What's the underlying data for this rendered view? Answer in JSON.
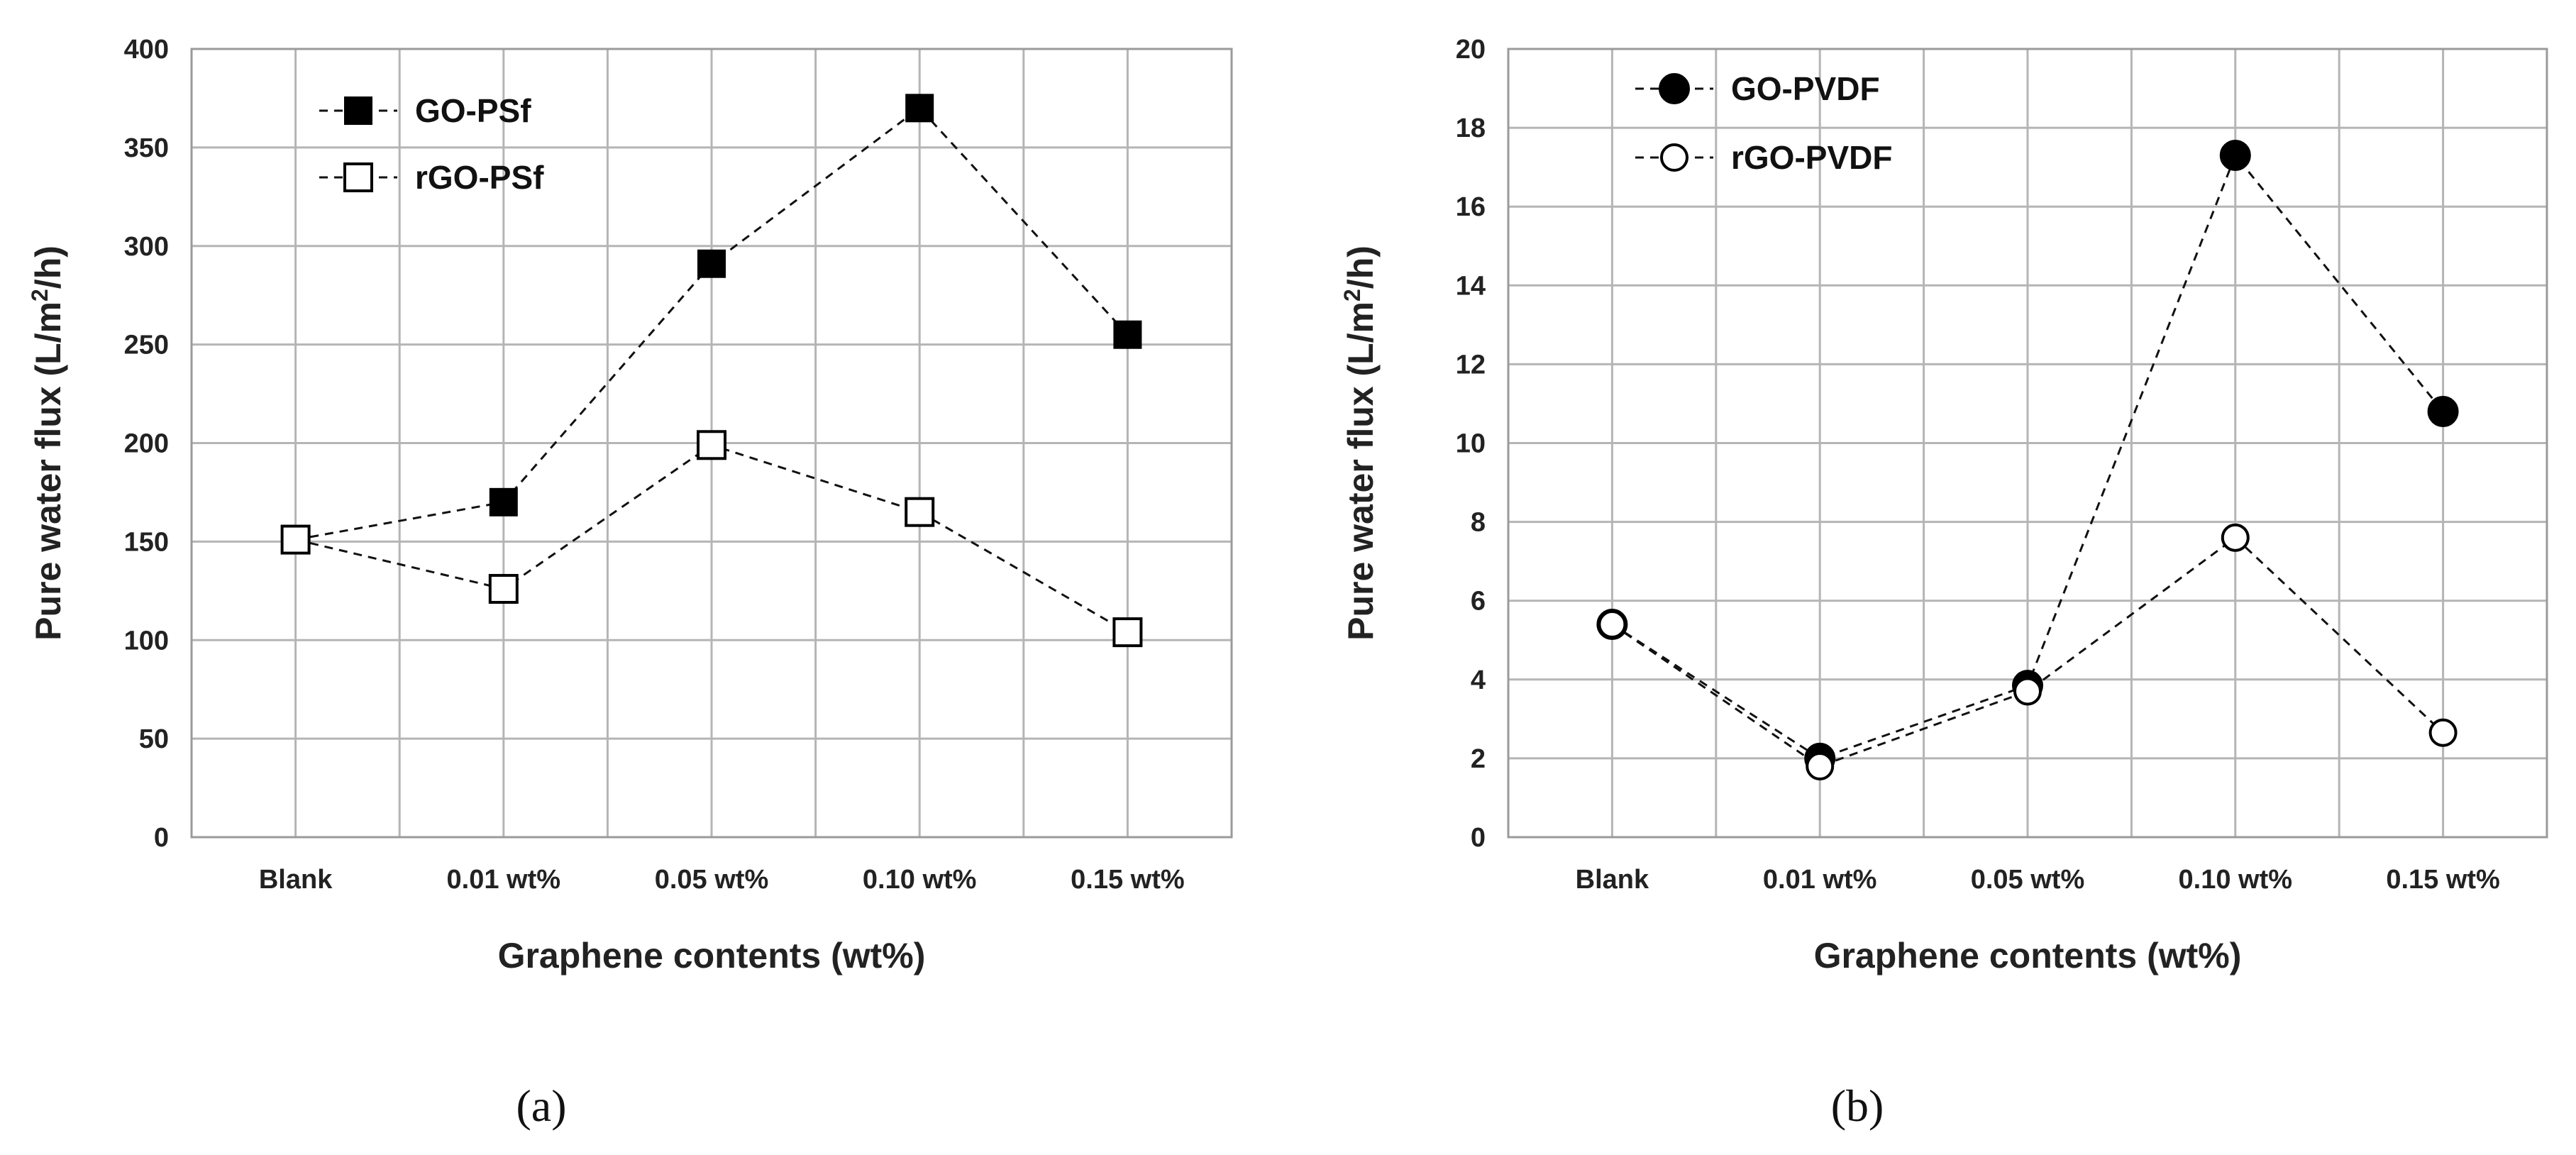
{
  "chart_data": [
    {
      "type": "line",
      "panel_label": "(a)",
      "categories": [
        "Blank",
        "0.01 wt%",
        "0.05 wt%",
        "0.10 wt%",
        "0.15 wt%"
      ],
      "xlabel": "Graphene contents (wt%)",
      "ylabel_prefix": "Pure water flux (L/m",
      "ylabel_sup": "2",
      "ylabel_suffix": "/h)",
      "ylim": [
        0,
        400
      ],
      "yticks": [
        0,
        50,
        100,
        150,
        200,
        250,
        300,
        350,
        400
      ],
      "grid": true,
      "legend_position": "top-left",
      "series": [
        {
          "name": "GO-PSf",
          "marker": "square-filled",
          "values": [
            151,
            170,
            291,
            370,
            255
          ]
        },
        {
          "name": "rGO-PSf",
          "marker": "square-open",
          "values": [
            151,
            126,
            199,
            165,
            104
          ]
        }
      ]
    },
    {
      "type": "line",
      "panel_label": "(b)",
      "categories": [
        "Blank",
        "0.01 wt%",
        "0.05 wt%",
        "0.10 wt%",
        "0.15 wt%"
      ],
      "xlabel": "Graphene contents (wt%)",
      "ylabel_prefix": "Pure water flux (L/m",
      "ylabel_sup": "2",
      "ylabel_suffix": "/h)",
      "ylim": [
        0,
        20
      ],
      "yticks": [
        0,
        2,
        4,
        6,
        8,
        10,
        12,
        14,
        16,
        18,
        20
      ],
      "grid": true,
      "legend_position": "top-left",
      "series": [
        {
          "name": "GO-PVDF",
          "marker": "circle-filled",
          "values": [
            5.4,
            2.0,
            3.85,
            17.3,
            10.8
          ]
        },
        {
          "name": "rGO-PVDF",
          "marker": "circle-open",
          "values": [
            5.4,
            1.8,
            3.7,
            7.6,
            2.65
          ]
        }
      ]
    }
  ]
}
